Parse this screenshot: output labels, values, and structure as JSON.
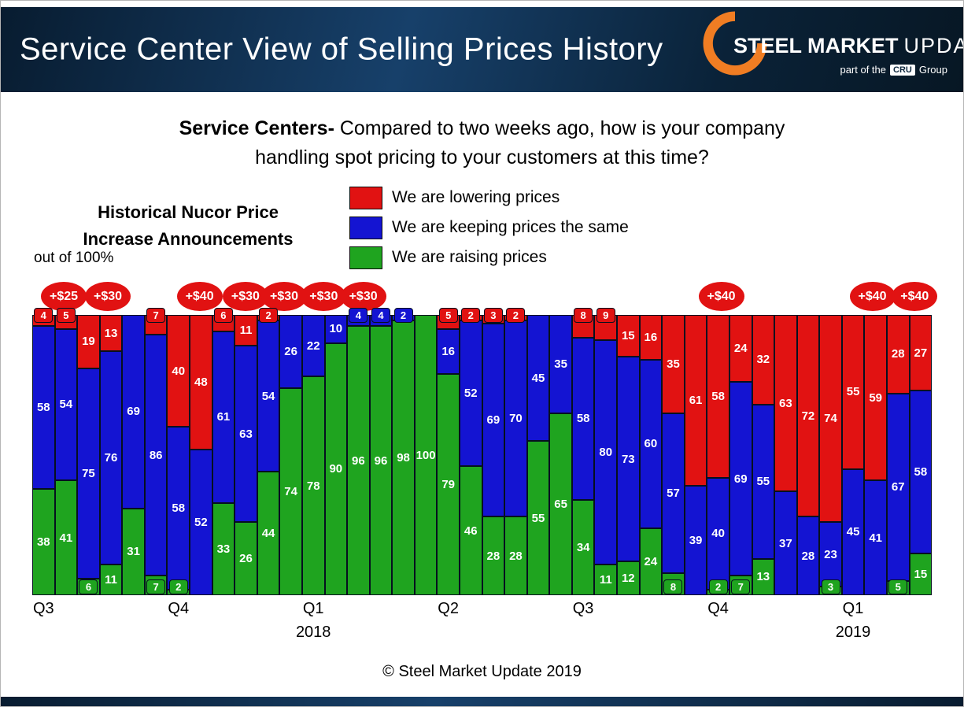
{
  "header": {
    "title": "Service Center View of Selling Prices History",
    "logo": {
      "word1": "STEEL",
      "word2": "MARKET",
      "word3": "UPDATE",
      "tagline_pre": "part of the",
      "tagline_box": "CRU",
      "tagline_post": "Group"
    }
  },
  "question": {
    "bold": "Service Centers-",
    "line1_rest": " Compared to two weeks ago, how is your company",
    "line2": "handling spot pricing to your customers at this time?"
  },
  "note": {
    "line1": "Historical Nucor Price",
    "line2": "Increase Announcements",
    "subtitle": "out of 100%"
  },
  "legend": [
    {
      "key": "lowering",
      "label": "We are lowering prices",
      "color": "#e11212"
    },
    {
      "key": "same",
      "label": "We are keeping prices the same",
      "color": "#1414d2"
    },
    {
      "key": "raising",
      "label": "We are raising prices",
      "color": "#1fa41f"
    }
  ],
  "announcements": [
    {
      "label": "+$25",
      "left_pct": 3.5
    },
    {
      "label": "+$30",
      "left_pct": 8.4
    },
    {
      "label": "+$40",
      "left_pct": 18.6
    },
    {
      "label": "+$30",
      "left_pct": 23.7
    },
    {
      "label": "+$30",
      "left_pct": 28.0
    },
    {
      "label": "+$30",
      "left_pct": 32.4
    },
    {
      "label": "+$30",
      "left_pct": 36.8
    },
    {
      "label": "+$40",
      "left_pct": 76.6
    },
    {
      "label": "+$40",
      "left_pct": 93.4
    },
    {
      "label": "+$40",
      "left_pct": 98.1
    }
  ],
  "chart_data": {
    "type": "bar",
    "stacked": true,
    "title": "Service Centers- Compared to two weeks ago, how is your company handling spot pricing to your customers at this time?",
    "xlabel": "",
    "ylabel": "out of 100%",
    "ylim": [
      0,
      100
    ],
    "grid": false,
    "legend_position": "top",
    "stack_order_top_to_bottom": [
      "lowering",
      "same",
      "raising"
    ],
    "series_colors": {
      "lowering": "#e11212",
      "same": "#1414d2",
      "raising": "#1fa41f"
    },
    "label_outside_threshold": 10,
    "series": [
      {
        "key": "raising",
        "name": "We are raising prices",
        "color": "#1fa41f",
        "values": [
          38,
          41,
          6,
          11,
          31,
          7,
          2,
          0,
          33,
          26,
          44,
          74,
          78,
          90,
          96,
          96,
          98,
          100,
          79,
          46,
          28,
          28,
          55,
          65,
          34,
          11,
          12,
          24,
          8,
          0,
          2,
          7,
          13,
          0,
          0,
          3,
          0,
          0,
          5,
          15
        ]
      },
      {
        "key": "same",
        "name": "We are keeping prices the same",
        "color": "#1414d2",
        "values": [
          58,
          54,
          75,
          76,
          69,
          86,
          58,
          52,
          61,
          63,
          54,
          26,
          22,
          10,
          4,
          4,
          2,
          0,
          16,
          52,
          69,
          70,
          45,
          35,
          58,
          80,
          73,
          60,
          57,
          39,
          40,
          69,
          55,
          37,
          28,
          23,
          45,
          41,
          67,
          58
        ]
      },
      {
        "key": "lowering",
        "name": "We are lowering prices",
        "color": "#e11212",
        "values": [
          4,
          5,
          19,
          13,
          0,
          7,
          40,
          48,
          6,
          11,
          2,
          0,
          0,
          0,
          0,
          0,
          0,
          0,
          5,
          2,
          3,
          2,
          0,
          0,
          8,
          9,
          15,
          16,
          35,
          61,
          58,
          24,
          32,
          63,
          72,
          74,
          55,
          59,
          28,
          27
        ]
      }
    ],
    "x_axis": {
      "ticks": [
        {
          "label": "Q3",
          "bar_index": 0
        },
        {
          "label": "Q4",
          "bar_index": 6
        },
        {
          "label": "Q1",
          "bar_index": 12
        },
        {
          "label": "Q2",
          "bar_index": 18
        },
        {
          "label": "Q3",
          "bar_index": 24
        },
        {
          "label": "Q4",
          "bar_index": 30
        },
        {
          "label": "Q1",
          "bar_index": 36
        }
      ],
      "years": [
        {
          "label": "2018",
          "bar_index": 12
        },
        {
          "label": "2019",
          "bar_index": 36
        }
      ]
    }
  },
  "footer": {
    "copyright": "© Steel Market Update 2019"
  },
  "colors": {
    "announcement_red": "#e11212",
    "logo_orange": "#f07d23",
    "header_navy_dark": "#081c30",
    "header_navy_light": "#17406a"
  }
}
